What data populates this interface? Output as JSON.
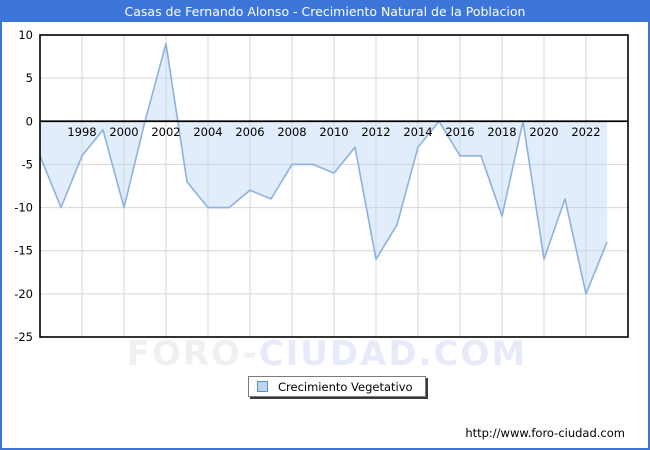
{
  "title": "Casas de Fernando Alonso - Crecimiento Natural de la Poblacion",
  "watermark": {
    "part1": "FORO-",
    "part2": "CIUDAD.COM"
  },
  "footer_url": "http://www.foro-ciudad.com",
  "legend": {
    "label": "Crecimiento Vegetativo"
  },
  "colors": {
    "frame_blue": "#3b76d8",
    "plot_border": "#000000",
    "gridline": "#d6d6d6",
    "area_fill": "rgba(189,216,244,0.45)",
    "line": "#8db2e0",
    "tick_text": "#000000"
  },
  "chart_data": {
    "type": "area",
    "title": "Casas de Fernando Alonso - Crecimiento Natural de la Poblacion",
    "series_name": "Crecimiento Vegetativo",
    "x": [
      1996,
      1997,
      1998,
      1999,
      2000,
      2001,
      2002,
      2003,
      2004,
      2005,
      2006,
      2007,
      2008,
      2009,
      2010,
      2011,
      2012,
      2013,
      2014,
      2015,
      2016,
      2017,
      2018,
      2019,
      2020,
      2021,
      2022,
      2023
    ],
    "values": [
      -4,
      -10,
      -4,
      -1,
      -10,
      0,
      9,
      -7,
      -10,
      -10,
      -8,
      -9,
      -5,
      -5,
      -6,
      -3,
      -16,
      -12,
      -3,
      0,
      -4,
      -4,
      -11,
      0,
      -16,
      -9,
      -20,
      -14
    ],
    "xlim": [
      1996,
      2024
    ],
    "ylim": [
      -25,
      10
    ],
    "yticks": [
      10,
      5,
      0,
      -5,
      -10,
      -15,
      -20,
      -25
    ],
    "xticks": [
      1998,
      2000,
      2002,
      2004,
      2006,
      2008,
      2010,
      2012,
      2014,
      2016,
      2018,
      2020,
      2022
    ],
    "grid": true,
    "legend_position": "bottom-center",
    "baseline": 0,
    "xlabel": "",
    "ylabel": ""
  }
}
